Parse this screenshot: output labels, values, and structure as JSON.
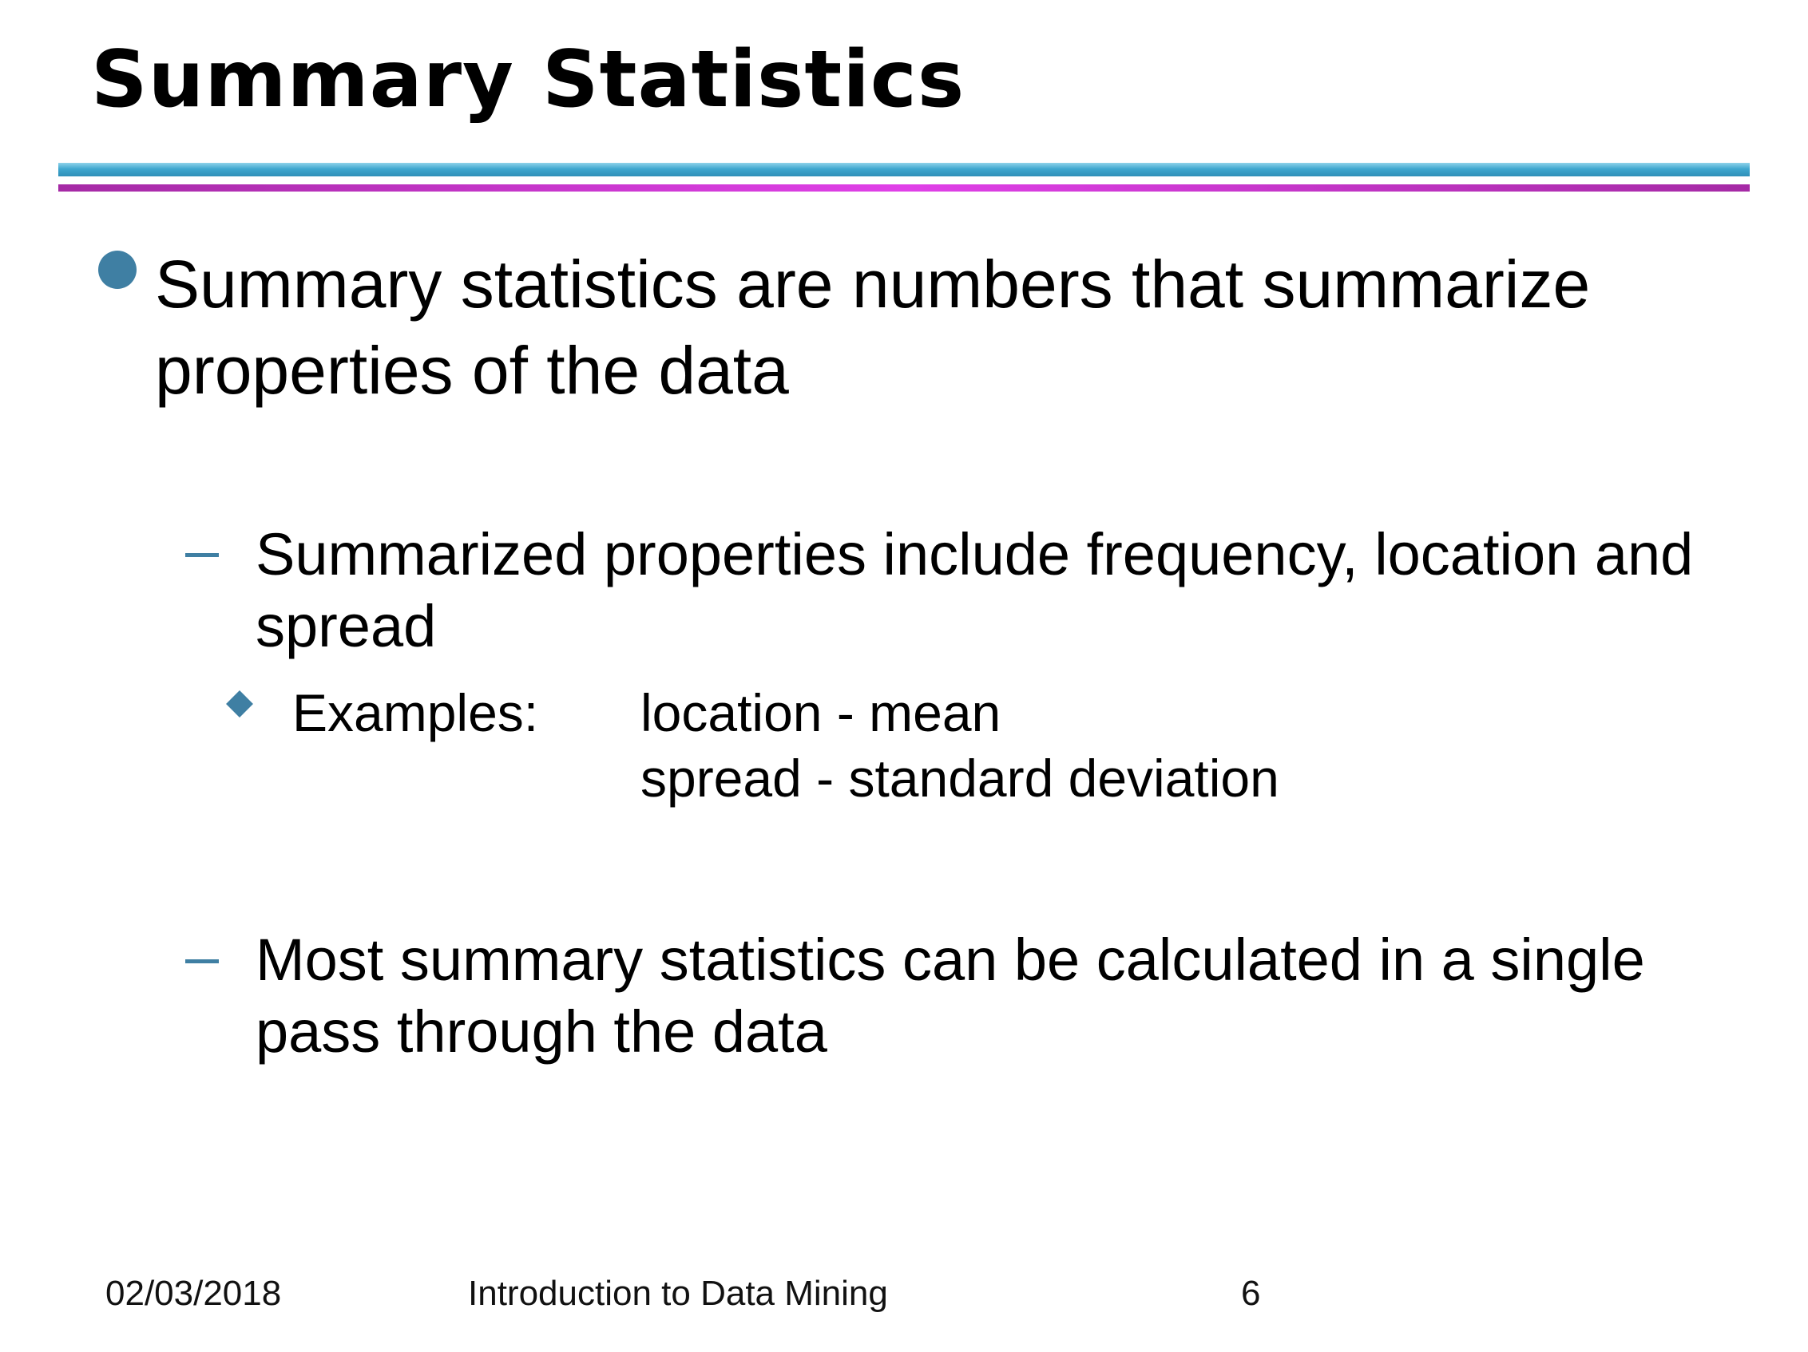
{
  "slide": {
    "title": "Summary Statistics",
    "bullet": "Summary statistics  are numbers that summarize properties of the data",
    "sub_points": [
      "Summarized properties include frequency, location and spread",
      "Most summary statistics can be calculated in a single pass through the data"
    ],
    "examples": {
      "label": "Examples:",
      "items": [
        "location - mean",
        "spread - standard deviation"
      ]
    }
  },
  "footer": {
    "date": "02/03/2018",
    "course": "Introduction to Data Mining",
    "page": "6"
  },
  "colors": {
    "bullet_accent": "#3f7fa3",
    "rule_blue": "#3fa7cf",
    "rule_magenta": "#d23ad8"
  }
}
